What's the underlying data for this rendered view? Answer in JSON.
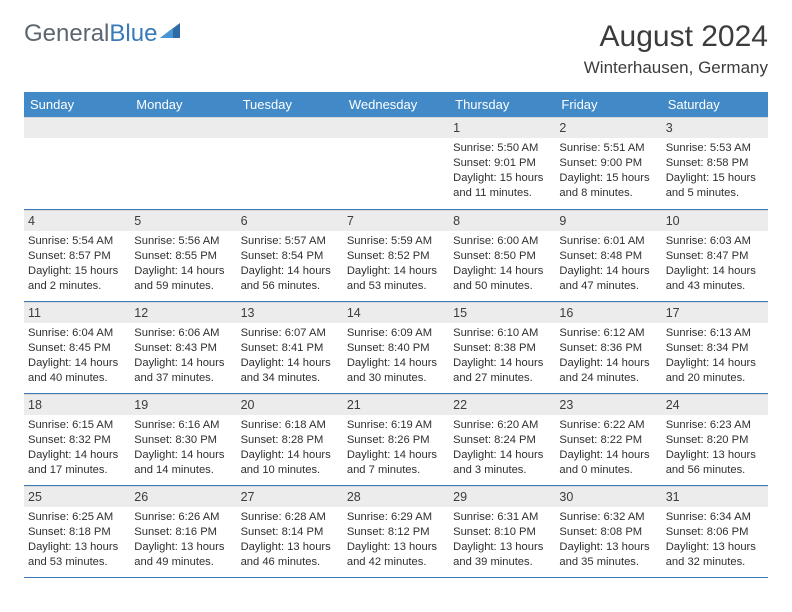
{
  "header": {
    "logo_general": "General",
    "logo_blue": "Blue",
    "month_title": "August 2024",
    "location": "Winterhausen, Germany"
  },
  "day_labels": [
    "Sunday",
    "Monday",
    "Tuesday",
    "Wednesday",
    "Thursday",
    "Friday",
    "Saturday"
  ],
  "colors": {
    "header_bg": "#4189c7",
    "header_text": "#ffffff",
    "daynum_bg": "#ececec",
    "border": "#3a7ab8",
    "logo_gray": "#5c6670",
    "logo_blue": "#3a7ab8",
    "text": "#3c3c3c"
  },
  "weeks": [
    [
      {
        "num": "",
        "sunrise": "",
        "sunset": "",
        "daylight": ""
      },
      {
        "num": "",
        "sunrise": "",
        "sunset": "",
        "daylight": ""
      },
      {
        "num": "",
        "sunrise": "",
        "sunset": "",
        "daylight": ""
      },
      {
        "num": "",
        "sunrise": "",
        "sunset": "",
        "daylight": ""
      },
      {
        "num": "1",
        "sunrise": "Sunrise: 5:50 AM",
        "sunset": "Sunset: 9:01 PM",
        "daylight": "Daylight: 15 hours and 11 minutes."
      },
      {
        "num": "2",
        "sunrise": "Sunrise: 5:51 AM",
        "sunset": "Sunset: 9:00 PM",
        "daylight": "Daylight: 15 hours and 8 minutes."
      },
      {
        "num": "3",
        "sunrise": "Sunrise: 5:53 AM",
        "sunset": "Sunset: 8:58 PM",
        "daylight": "Daylight: 15 hours and 5 minutes."
      }
    ],
    [
      {
        "num": "4",
        "sunrise": "Sunrise: 5:54 AM",
        "sunset": "Sunset: 8:57 PM",
        "daylight": "Daylight: 15 hours and 2 minutes."
      },
      {
        "num": "5",
        "sunrise": "Sunrise: 5:56 AM",
        "sunset": "Sunset: 8:55 PM",
        "daylight": "Daylight: 14 hours and 59 minutes."
      },
      {
        "num": "6",
        "sunrise": "Sunrise: 5:57 AM",
        "sunset": "Sunset: 8:54 PM",
        "daylight": "Daylight: 14 hours and 56 minutes."
      },
      {
        "num": "7",
        "sunrise": "Sunrise: 5:59 AM",
        "sunset": "Sunset: 8:52 PM",
        "daylight": "Daylight: 14 hours and 53 minutes."
      },
      {
        "num": "8",
        "sunrise": "Sunrise: 6:00 AM",
        "sunset": "Sunset: 8:50 PM",
        "daylight": "Daylight: 14 hours and 50 minutes."
      },
      {
        "num": "9",
        "sunrise": "Sunrise: 6:01 AM",
        "sunset": "Sunset: 8:48 PM",
        "daylight": "Daylight: 14 hours and 47 minutes."
      },
      {
        "num": "10",
        "sunrise": "Sunrise: 6:03 AM",
        "sunset": "Sunset: 8:47 PM",
        "daylight": "Daylight: 14 hours and 43 minutes."
      }
    ],
    [
      {
        "num": "11",
        "sunrise": "Sunrise: 6:04 AM",
        "sunset": "Sunset: 8:45 PM",
        "daylight": "Daylight: 14 hours and 40 minutes."
      },
      {
        "num": "12",
        "sunrise": "Sunrise: 6:06 AM",
        "sunset": "Sunset: 8:43 PM",
        "daylight": "Daylight: 14 hours and 37 minutes."
      },
      {
        "num": "13",
        "sunrise": "Sunrise: 6:07 AM",
        "sunset": "Sunset: 8:41 PM",
        "daylight": "Daylight: 14 hours and 34 minutes."
      },
      {
        "num": "14",
        "sunrise": "Sunrise: 6:09 AM",
        "sunset": "Sunset: 8:40 PM",
        "daylight": "Daylight: 14 hours and 30 minutes."
      },
      {
        "num": "15",
        "sunrise": "Sunrise: 6:10 AM",
        "sunset": "Sunset: 8:38 PM",
        "daylight": "Daylight: 14 hours and 27 minutes."
      },
      {
        "num": "16",
        "sunrise": "Sunrise: 6:12 AM",
        "sunset": "Sunset: 8:36 PM",
        "daylight": "Daylight: 14 hours and 24 minutes."
      },
      {
        "num": "17",
        "sunrise": "Sunrise: 6:13 AM",
        "sunset": "Sunset: 8:34 PM",
        "daylight": "Daylight: 14 hours and 20 minutes."
      }
    ],
    [
      {
        "num": "18",
        "sunrise": "Sunrise: 6:15 AM",
        "sunset": "Sunset: 8:32 PM",
        "daylight": "Daylight: 14 hours and 17 minutes."
      },
      {
        "num": "19",
        "sunrise": "Sunrise: 6:16 AM",
        "sunset": "Sunset: 8:30 PM",
        "daylight": "Daylight: 14 hours and 14 minutes."
      },
      {
        "num": "20",
        "sunrise": "Sunrise: 6:18 AM",
        "sunset": "Sunset: 8:28 PM",
        "daylight": "Daylight: 14 hours and 10 minutes."
      },
      {
        "num": "21",
        "sunrise": "Sunrise: 6:19 AM",
        "sunset": "Sunset: 8:26 PM",
        "daylight": "Daylight: 14 hours and 7 minutes."
      },
      {
        "num": "22",
        "sunrise": "Sunrise: 6:20 AM",
        "sunset": "Sunset: 8:24 PM",
        "daylight": "Daylight: 14 hours and 3 minutes."
      },
      {
        "num": "23",
        "sunrise": "Sunrise: 6:22 AM",
        "sunset": "Sunset: 8:22 PM",
        "daylight": "Daylight: 14 hours and 0 minutes."
      },
      {
        "num": "24",
        "sunrise": "Sunrise: 6:23 AM",
        "sunset": "Sunset: 8:20 PM",
        "daylight": "Daylight: 13 hours and 56 minutes."
      }
    ],
    [
      {
        "num": "25",
        "sunrise": "Sunrise: 6:25 AM",
        "sunset": "Sunset: 8:18 PM",
        "daylight": "Daylight: 13 hours and 53 minutes."
      },
      {
        "num": "26",
        "sunrise": "Sunrise: 6:26 AM",
        "sunset": "Sunset: 8:16 PM",
        "daylight": "Daylight: 13 hours and 49 minutes."
      },
      {
        "num": "27",
        "sunrise": "Sunrise: 6:28 AM",
        "sunset": "Sunset: 8:14 PM",
        "daylight": "Daylight: 13 hours and 46 minutes."
      },
      {
        "num": "28",
        "sunrise": "Sunrise: 6:29 AM",
        "sunset": "Sunset: 8:12 PM",
        "daylight": "Daylight: 13 hours and 42 minutes."
      },
      {
        "num": "29",
        "sunrise": "Sunrise: 6:31 AM",
        "sunset": "Sunset: 8:10 PM",
        "daylight": "Daylight: 13 hours and 39 minutes."
      },
      {
        "num": "30",
        "sunrise": "Sunrise: 6:32 AM",
        "sunset": "Sunset: 8:08 PM",
        "daylight": "Daylight: 13 hours and 35 minutes."
      },
      {
        "num": "31",
        "sunrise": "Sunrise: 6:34 AM",
        "sunset": "Sunset: 8:06 PM",
        "daylight": "Daylight: 13 hours and 32 minutes."
      }
    ]
  ]
}
